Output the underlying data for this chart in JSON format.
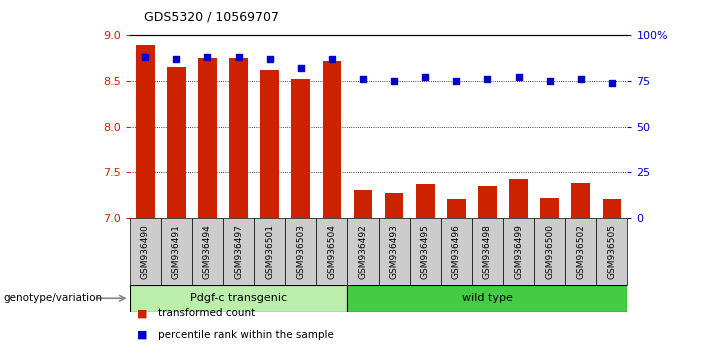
{
  "title": "GDS5320 / 10569707",
  "categories": [
    "GSM936490",
    "GSM936491",
    "GSM936494",
    "GSM936497",
    "GSM936501",
    "GSM936503",
    "GSM936504",
    "GSM936492",
    "GSM936493",
    "GSM936495",
    "GSM936496",
    "GSM936498",
    "GSM936499",
    "GSM936500",
    "GSM936502",
    "GSM936505"
  ],
  "red_values": [
    8.9,
    8.65,
    8.75,
    8.75,
    8.62,
    8.52,
    8.72,
    7.3,
    7.27,
    7.37,
    7.21,
    7.35,
    7.42,
    7.22,
    7.38,
    7.2
  ],
  "blue_values": [
    88,
    87,
    88,
    88,
    87,
    82,
    87,
    76,
    75,
    77,
    75,
    76,
    77,
    75,
    76,
    74
  ],
  "ymin": 7.0,
  "ymax": 9.0,
  "y2min": 0,
  "y2max": 100,
  "yticks": [
    7.0,
    7.5,
    8.0,
    8.5,
    9.0
  ],
  "y2ticks": [
    0,
    25,
    50,
    75,
    100
  ],
  "y2ticklabels": [
    "0",
    "25",
    "50",
    "75",
    "100%"
  ],
  "group1_label": "Pdgf-c transgenic",
  "group2_label": "wild type",
  "group1_count": 7,
  "group2_count": 9,
  "genotype_label": "genotype/variation",
  "legend1": "transformed count",
  "legend2": "percentile rank within the sample",
  "bar_color": "#cc2200",
  "dot_color": "#0000cc",
  "group1_bg": "#bbeeaa",
  "group2_bg": "#44cc44",
  "tick_bg": "#cccccc",
  "bar_bottom": 7.0,
  "bar_width": 0.6,
  "dot_size": 25
}
